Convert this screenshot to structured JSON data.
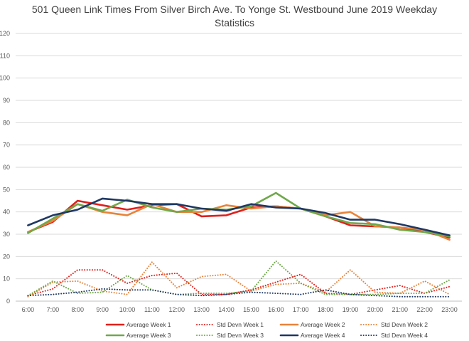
{
  "chart_data": {
    "type": "line",
    "title": "501 Queen Link Times From Silver Birch Ave. To Yonge St. Westbound June 2019 Weekday",
    "subtitle": "Statistics",
    "xlabel": "",
    "ylabel": "",
    "ylim": [
      0,
      120
    ],
    "yticks": [
      0,
      10,
      20,
      30,
      40,
      50,
      60,
      70,
      80,
      90,
      100,
      110,
      120
    ],
    "grid": true,
    "legend_position": "bottom",
    "categories": [
      "6:00",
      "7:00",
      "8:00",
      "9:00",
      "10:00",
      "11:00",
      "12:00",
      "13:00",
      "14:00",
      "15:00",
      "16:00",
      "17:00",
      "18:00",
      "19:00",
      "20:00",
      "21:00",
      "22:00",
      "23:00"
    ],
    "series": [
      {
        "name": "Average Week 1",
        "style": "solid",
        "color": "#e0201c",
        "values": [
          31,
          35.5,
          45,
          43,
          41,
          43,
          43.5,
          38,
          38.5,
          42,
          42.5,
          41.5,
          38,
          34,
          33.5,
          33,
          31,
          28.5
        ]
      },
      {
        "name": "Std Devn Week 1",
        "style": "dotted",
        "color": "#e0201c",
        "values": [
          2.5,
          5.5,
          14,
          14,
          8,
          11.5,
          12.5,
          3,
          3,
          5,
          8.5,
          12,
          3.5,
          3,
          5,
          7,
          3.5,
          6.5
        ]
      },
      {
        "name": "Average Week 2",
        "style": "solid",
        "color": "#e8833a",
        "values": [
          31,
          36,
          43.5,
          40,
          38.5,
          43.5,
          40,
          40,
          43,
          41.5,
          42.5,
          41.5,
          38.5,
          40,
          33.5,
          33,
          32,
          27.5
        ]
      },
      {
        "name": "Std Devn Week 2",
        "style": "dotted",
        "color": "#e8833a",
        "values": [
          2,
          8.5,
          9,
          4.5,
          3,
          17.5,
          6,
          11,
          12,
          4.5,
          7.5,
          8,
          4,
          14,
          4,
          3.5,
          9,
          3
        ]
      },
      {
        "name": "Average Week 3",
        "style": "solid",
        "color": "#6fa84a",
        "values": [
          30.5,
          37,
          43.5,
          40.5,
          45.5,
          42,
          40,
          41.5,
          41,
          42.5,
          48.5,
          41.5,
          38,
          35,
          34.5,
          32,
          31,
          29
        ]
      },
      {
        "name": "Std Devn Week 3",
        "style": "dotted",
        "color": "#6fa84a",
        "values": [
          2.5,
          9,
          3.5,
          4,
          11.5,
          5,
          3,
          3.5,
          3.5,
          4.5,
          18,
          8,
          3,
          3,
          3,
          3.5,
          3.5,
          9.5
        ]
      },
      {
        "name": "Average Week 4",
        "style": "solid",
        "color": "#1f3864",
        "values": [
          34,
          38.5,
          41,
          46,
          45,
          43.5,
          43.5,
          41.5,
          40.5,
          43.5,
          42,
          41.5,
          39.5,
          36.5,
          36.5,
          34.5,
          32,
          29.5
        ]
      },
      {
        "name": "Std Devn Week 4",
        "style": "dotted",
        "color": "#1f3864",
        "values": [
          2.5,
          3,
          4,
          5.5,
          5,
          5,
          3,
          2.5,
          3,
          4,
          3.5,
          3,
          5,
          3,
          2.5,
          2,
          2,
          2
        ]
      }
    ]
  }
}
